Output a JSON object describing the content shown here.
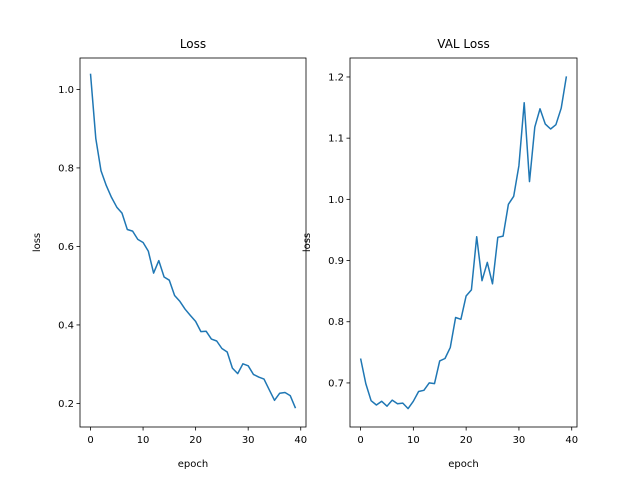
{
  "chart_data": [
    {
      "type": "line",
      "title": "Loss",
      "xlabel": "epoch",
      "ylabel": "loss",
      "xlim": [
        -2,
        41
      ],
      "ylim": [
        0.14,
        1.08
      ],
      "xticks": [
        0,
        10,
        20,
        30,
        40
      ],
      "yticks": [
        0.2,
        0.4,
        0.6,
        0.8,
        1.0
      ],
      "ytick_format": 1,
      "grid": false,
      "color": "#1f77b4",
      "x": [
        0,
        1,
        2,
        3,
        4,
        5,
        6,
        7,
        8,
        9,
        10,
        11,
        12,
        13,
        14,
        15,
        16,
        17,
        18,
        19,
        20,
        21,
        22,
        23,
        24,
        25,
        26,
        27,
        28,
        29,
        30,
        31,
        32,
        33,
        34,
        35,
        36,
        37,
        38,
        39
      ],
      "y": [
        1.04,
        0.875,
        0.793,
        0.755,
        0.725,
        0.7,
        0.685,
        0.643,
        0.639,
        0.618,
        0.61,
        0.588,
        0.532,
        0.564,
        0.522,
        0.514,
        0.475,
        0.46,
        0.44,
        0.424,
        0.409,
        0.383,
        0.384,
        0.364,
        0.359,
        0.34,
        0.331,
        0.29,
        0.276,
        0.301,
        0.296,
        0.274,
        0.267,
        0.262,
        0.235,
        0.208,
        0.226,
        0.228,
        0.22,
        0.188
      ]
    },
    {
      "type": "line",
      "title": "VAL Loss",
      "xlabel": "epoch",
      "ylabel": "loss",
      "xlim": [
        -2,
        41
      ],
      "ylim": [
        0.628,
        1.231
      ],
      "xticks": [
        0,
        10,
        20,
        30,
        40
      ],
      "yticks": [
        0.7,
        0.8,
        0.9,
        1.0,
        1.1,
        1.2
      ],
      "ytick_format": 1,
      "grid": false,
      "color": "#1f77b4",
      "x": [
        0,
        1,
        2,
        3,
        4,
        5,
        6,
        7,
        8,
        9,
        10,
        11,
        12,
        13,
        14,
        15,
        16,
        17,
        18,
        19,
        20,
        21,
        22,
        23,
        24,
        25,
        26,
        27,
        28,
        29,
        30,
        31,
        32,
        33,
        34,
        35,
        36,
        37,
        38,
        39
      ],
      "y": [
        0.74,
        0.699,
        0.671,
        0.664,
        0.67,
        0.662,
        0.672,
        0.666,
        0.667,
        0.658,
        0.67,
        0.686,
        0.688,
        0.7,
        0.699,
        0.736,
        0.74,
        0.758,
        0.807,
        0.804,
        0.842,
        0.852,
        0.939,
        0.867,
        0.897,
        0.862,
        0.938,
        0.94,
        0.992,
        1.005,
        1.055,
        1.158,
        1.029,
        1.118,
        1.148,
        1.123,
        1.115,
        1.122,
        1.149,
        1.201
      ]
    }
  ]
}
